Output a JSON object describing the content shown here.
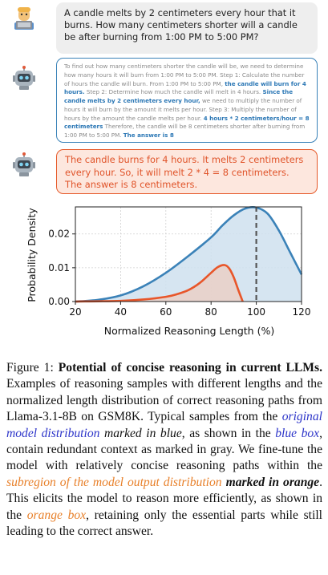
{
  "question": "A candle melts by 2 centimeters every hour that it burns. How many centimeters shorter will a candle be after burning from 1:00 PM to 5:00 PM?",
  "long_answer": {
    "p1": "To find out how many centimeters shorter the candle will be, we need to determine how many hours it will burn from 1:00 PM to 5:00 PM. Step 1: Calculate the number of hours the candle will burn. From 1:00 PM to 5:00 PM, ",
    "h1": "the candle will burn for 4 hours.",
    "p2": " Step 2: Determine how much the candle will melt in 4 hours. ",
    "h2": "Since the candle melts by 2 centimeters every hour,",
    "p3": " we need to multiply the number of hours it will burn by the amount it melts per hour. Step 3: Multiply the number of hours by the amount the candle melts per hour. ",
    "h3": "4 hours * 2 centimeters/hour = 8 centimeters",
    "p4": " Therefore, the candle will be 8 centimeters shorter after burning from 1:00 PM to 5:00 PM. ",
    "h4": "The answer is 8"
  },
  "short_answer": "The candle burns for 4 hours. It melts 2 centimeters every hour. So, it will melt 2 * 4 = 8 centimeters. The answer is 8 centimeters.",
  "chart_data": {
    "type": "area",
    "xlabel": "Normalized Reasoning Length (%)",
    "ylabel": "Probability Density",
    "xlim": [
      20,
      120
    ],
    "ylim": [
      0,
      0.028
    ],
    "xticks": [
      "20",
      "40",
      "60",
      "80",
      "100",
      "120"
    ],
    "yticks": [
      "0.00",
      "0.01",
      "0.02"
    ],
    "ytick_values": [
      0,
      0.01,
      0.02
    ],
    "xtick_values": [
      20,
      40,
      60,
      80,
      100,
      120
    ],
    "grid": true,
    "series": [
      {
        "color": "#3b82b8",
        "fill": "#cfe0ee",
        "x": [
          20,
          30,
          40,
          50,
          60,
          70,
          80,
          85,
          90,
          95,
          100,
          105,
          110,
          115,
          120
        ],
        "y": [
          0.0,
          0.0005,
          0.0018,
          0.0045,
          0.0085,
          0.0135,
          0.019,
          0.0225,
          0.0255,
          0.0275,
          0.0278,
          0.026,
          0.021,
          0.0145,
          0.008
        ]
      },
      {
        "color": "#e8562a",
        "fill": "#ead0c7",
        "x": [
          20,
          40,
          50,
          60,
          65,
          70,
          75,
          80,
          83,
          86,
          88,
          90,
          92,
          94
        ],
        "y": [
          0.0,
          0.0002,
          0.0006,
          0.0014,
          0.0022,
          0.0034,
          0.0055,
          0.0085,
          0.0102,
          0.0108,
          0.0098,
          0.0072,
          0.0035,
          0.0
        ]
      }
    ],
    "marker_x": 100
  },
  "caption": {
    "label": "Figure 1: ",
    "title": "Potential of concise reasoning in current LLMs.",
    "t1": " Examples of reasoning samples with different lengths and the normalized length distribution of correct reasoning paths from Llama-3.1-8B on GSM8K. Typical samples from the ",
    "blue1": "original model distribution",
    "t2": "marked in blue",
    "t3": ", as shown in the ",
    "blue2": "blue box",
    "t4": ", contain redundant context as marked in gray. We fine-tune the model with relatively concise reasoning paths within the ",
    "orange1": "subregion of the model output distribution",
    "t5": "marked in orange",
    "t6": ". This elicits the model to reason more efficiently, as shown in the ",
    "orange2": "orange box",
    "t7": ", retaining only the essential parts while still leading to the correct answer."
  }
}
